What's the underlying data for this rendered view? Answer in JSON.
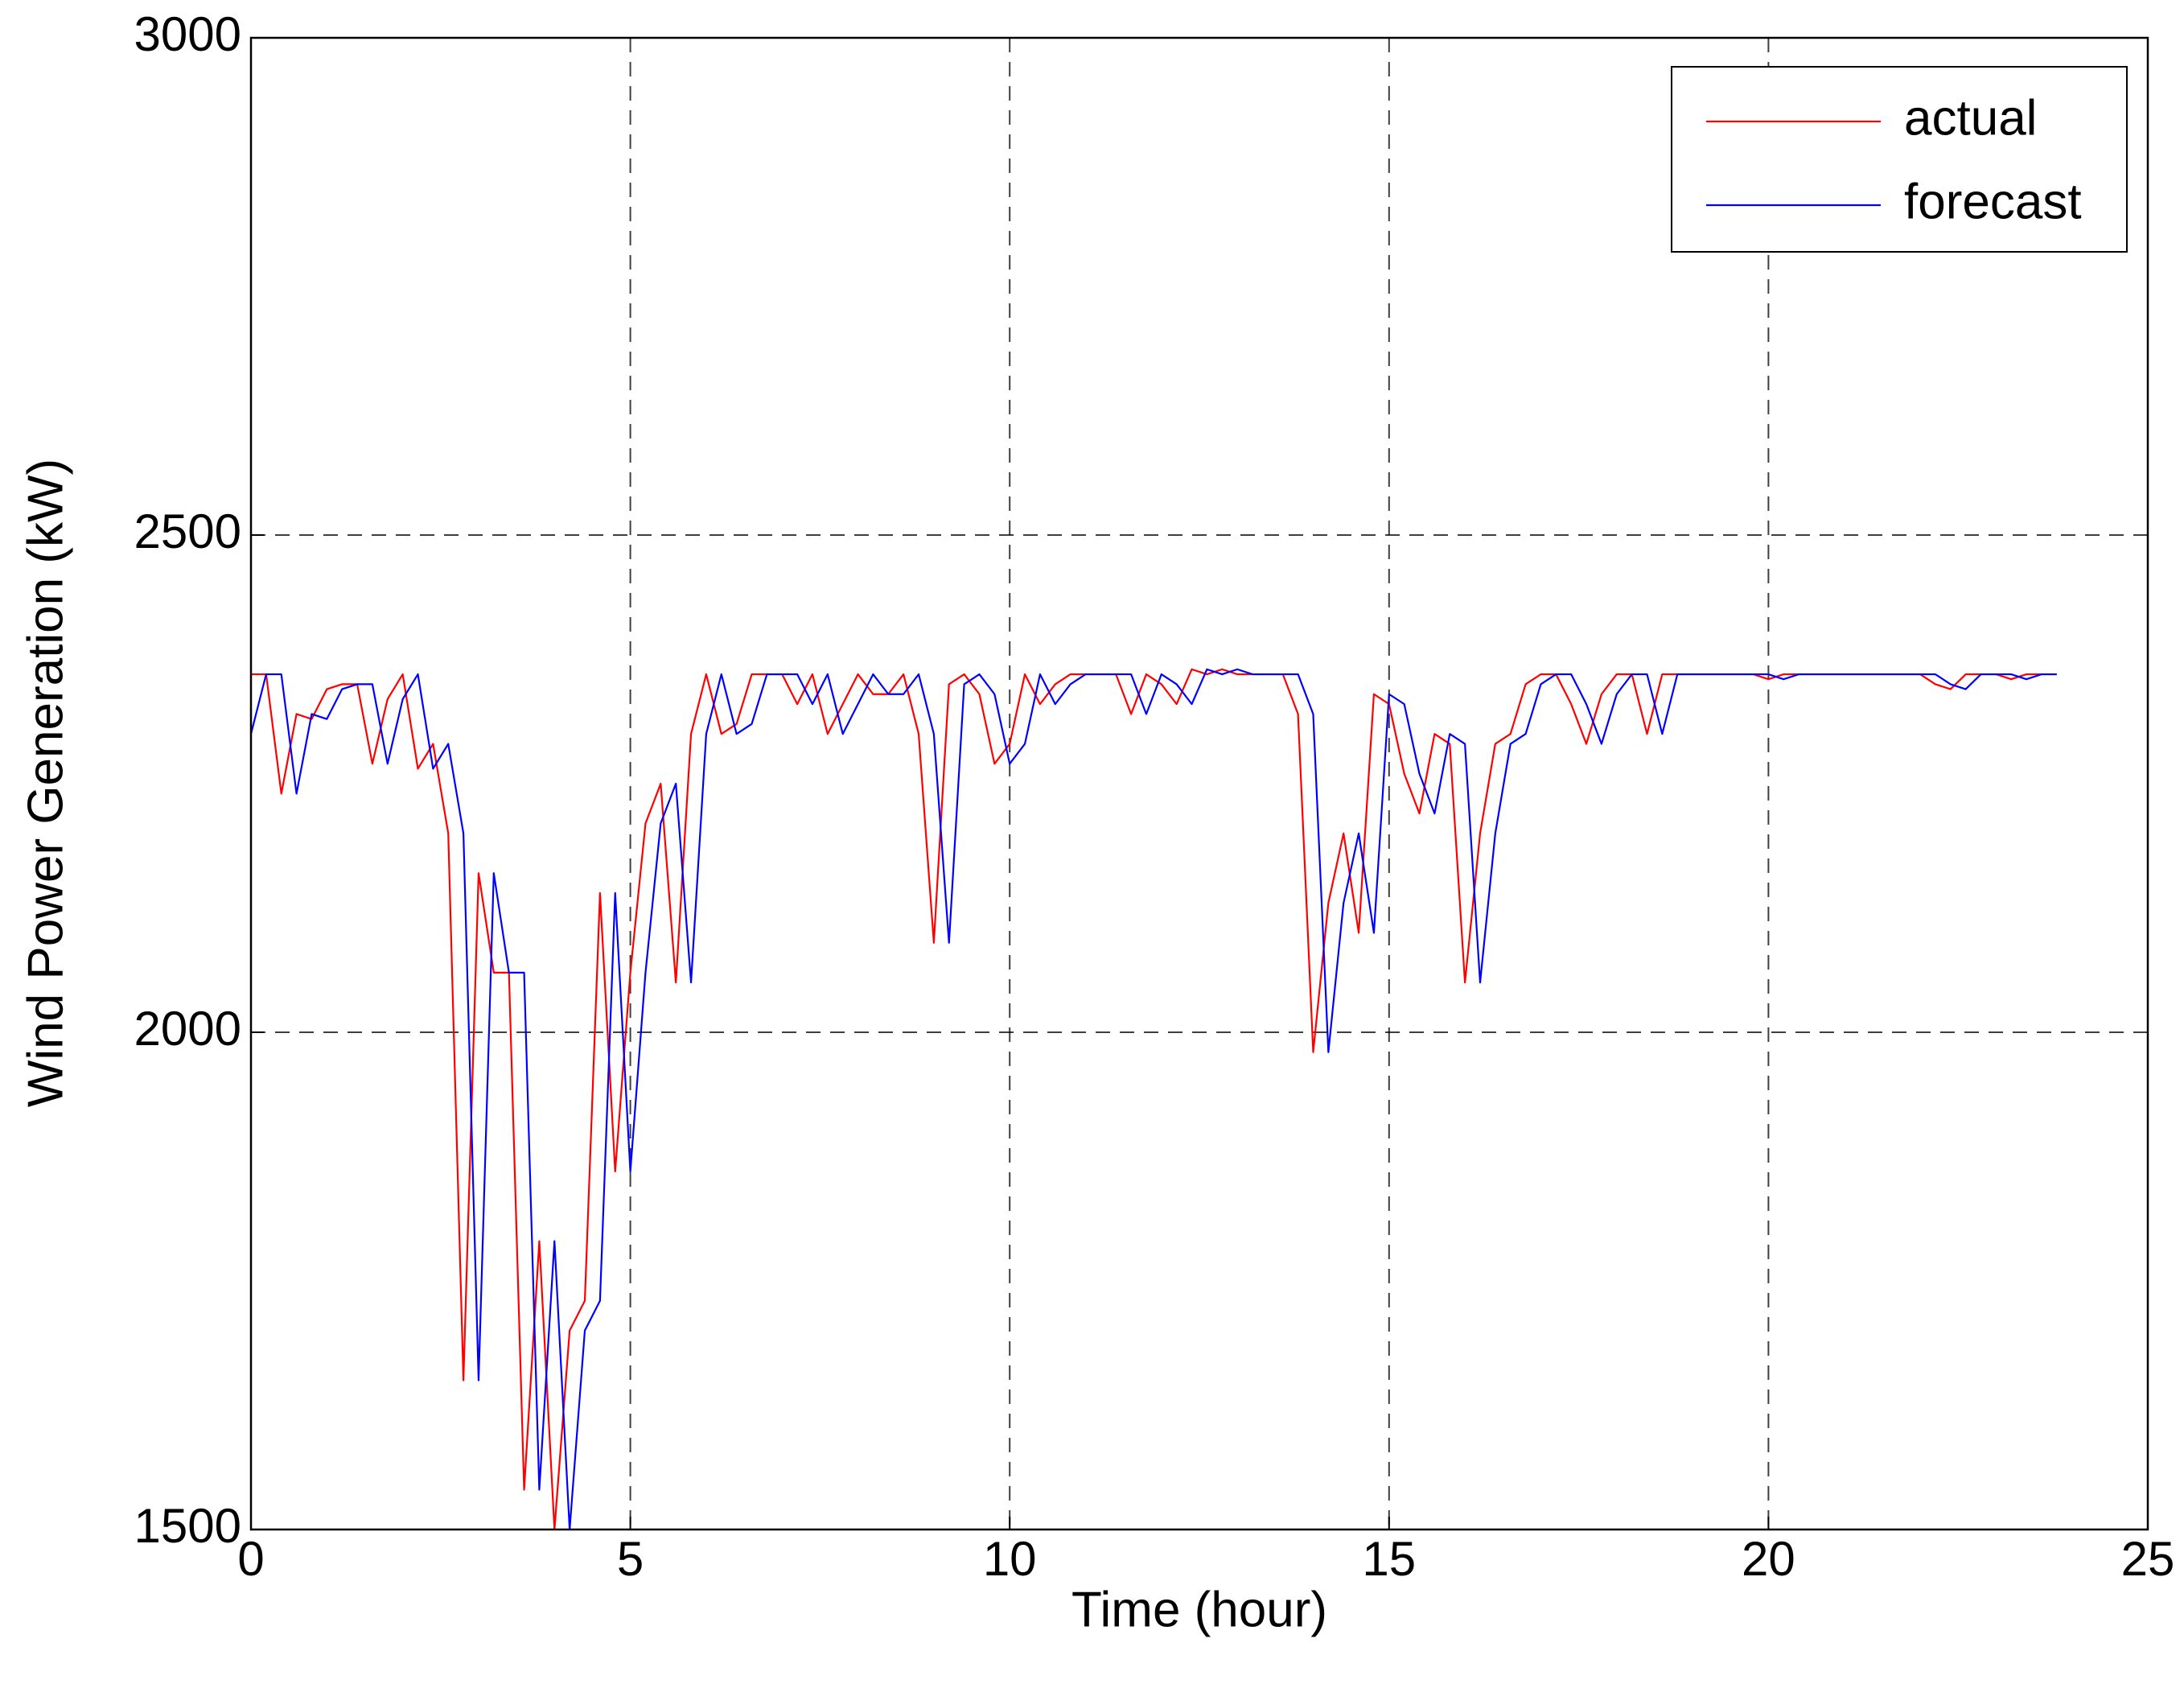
{
  "chart_data": {
    "type": "line",
    "xlabel": "Time (hour)",
    "ylabel": "Wind Power Generation (kW)",
    "x": [
      0,
      0.2,
      0.4,
      0.6,
      0.8,
      1.0,
      1.2,
      1.4,
      1.6,
      1.8,
      2.0,
      2.2,
      2.4,
      2.6,
      2.8,
      3.0,
      3.2,
      3.4,
      3.6,
      3.8,
      4.0,
      4.2,
      4.4,
      4.6,
      4.8,
      5.0,
      5.2,
      5.4,
      5.6,
      5.8,
      6.0,
      6.2,
      6.4,
      6.6,
      6.8,
      7.0,
      7.2,
      7.4,
      7.6,
      7.8,
      8.0,
      8.2,
      8.4,
      8.6,
      8.8,
      9.0,
      9.2,
      9.4,
      9.6,
      9.8,
      10.0,
      10.2,
      10.4,
      10.6,
      10.8,
      11.0,
      11.2,
      11.4,
      11.6,
      11.8,
      12.0,
      12.2,
      12.4,
      12.6,
      12.8,
      13.0,
      13.2,
      13.4,
      13.6,
      13.8,
      14.0,
      14.2,
      14.4,
      14.6,
      14.8,
      15.0,
      15.2,
      15.4,
      15.6,
      15.8,
      16.0,
      16.2,
      16.4,
      16.6,
      16.8,
      17.0,
      17.2,
      17.4,
      17.6,
      17.8,
      18.0,
      18.2,
      18.4,
      18.6,
      18.8,
      19.0,
      19.2,
      19.4,
      19.6,
      19.8,
      20.0,
      20.2,
      20.4,
      20.6,
      20.8,
      21.0,
      21.2,
      21.4,
      21.6,
      21.8,
      22.0,
      22.2,
      22.4,
      22.6,
      22.8,
      23.0,
      23.2,
      23.4,
      23.6,
      23.8
    ],
    "series": [
      {
        "name": "actual",
        "color": "#ff0000",
        "values": [
          2360,
          2360,
          2240,
          2320,
          2315,
          2345,
          2350,
          2350,
          2270,
          2335,
          2360,
          2265,
          2290,
          2200,
          1650,
          2160,
          2060,
          2060,
          1540,
          1790,
          1500,
          1700,
          1730,
          2140,
          1860,
          2060,
          2210,
          2250,
          2050,
          2300,
          2360,
          2300,
          2310,
          2360,
          2360,
          2360,
          2330,
          2360,
          2300,
          2330,
          2360,
          2340,
          2340,
          2360,
          2300,
          2090,
          2350,
          2360,
          2340,
          2270,
          2290,
          2360,
          2330,
          2350,
          2360,
          2360,
          2360,
          2360,
          2320,
          2360,
          2350,
          2330,
          2365,
          2360,
          2365,
          2360,
          2360,
          2360,
          2360,
          2320,
          1980,
          2130,
          2200,
          2100,
          2340,
          2330,
          2260,
          2220,
          2300,
          2290,
          2050,
          2200,
          2290,
          2300,
          2350,
          2360,
          2360,
          2330,
          2290,
          2340,
          2360,
          2360,
          2300,
          2360,
          2360,
          2360,
          2360,
          2360,
          2360,
          2360,
          2355,
          2360,
          2360,
          2360,
          2360,
          2360,
          2360,
          2360,
          2360,
          2360,
          2360,
          2350,
          2345,
          2360,
          2360,
          2360,
          2355,
          2360,
          2360,
          2360
        ]
      },
      {
        "name": "forecast",
        "color": "#0000ff",
        "values": [
          2300,
          2360,
          2360,
          2240,
          2320,
          2315,
          2345,
          2350,
          2350,
          2270,
          2335,
          2360,
          2265,
          2290,
          2200,
          1650,
          2160,
          2060,
          2060,
          1540,
          1790,
          1500,
          1700,
          1730,
          2140,
          1860,
          2060,
          2210,
          2250,
          2050,
          2300,
          2360,
          2300,
          2310,
          2360,
          2360,
          2360,
          2330,
          2360,
          2300,
          2330,
          2360,
          2340,
          2340,
          2360,
          2300,
          2090,
          2350,
          2360,
          2340,
          2270,
          2290,
          2360,
          2330,
          2350,
          2360,
          2360,
          2360,
          2360,
          2320,
          2360,
          2350,
          2330,
          2365,
          2360,
          2365,
          2360,
          2360,
          2360,
          2360,
          2320,
          1980,
          2130,
          2200,
          2100,
          2340,
          2330,
          2260,
          2220,
          2300,
          2290,
          2050,
          2200,
          2290,
          2300,
          2350,
          2360,
          2360,
          2330,
          2290,
          2340,
          2360,
          2360,
          2300,
          2360,
          2360,
          2360,
          2360,
          2360,
          2360,
          2360,
          2355,
          2360,
          2360,
          2360,
          2360,
          2360,
          2360,
          2360,
          2360,
          2360,
          2360,
          2350,
          2345,
          2360,
          2360,
          2360,
          2355,
          2360,
          2360
        ]
      }
    ],
    "xlim": [
      0,
      25
    ],
    "xticks": [
      0,
      5,
      10,
      15,
      20,
      25
    ],
    "ylim": [
      1500,
      3000
    ],
    "yticks": [
      1500,
      2000,
      2500,
      3000
    ],
    "grid": true,
    "legend": "upper right"
  }
}
